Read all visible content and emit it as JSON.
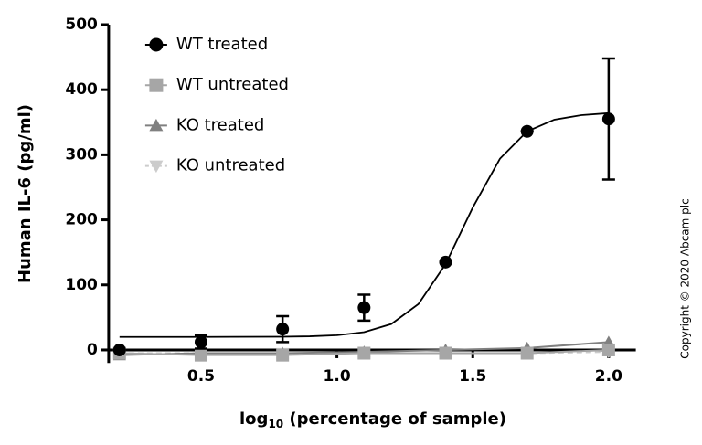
{
  "chart_data": {
    "type": "scatter",
    "y_label": "Human IL-6 (pg/ml)",
    "x_label": {
      "main": "log",
      "sub": "10",
      "rest": " (percentage of sample)"
    },
    "copyright": "Copyright © 2020 Abcam plc",
    "x": [
      0.2,
      0.5,
      0.8,
      1.1,
      1.4,
      1.7,
      2.0
    ],
    "series": [
      {
        "name": "WT treated",
        "color": "#000000",
        "marker": "circle",
        "values": [
          0,
          12,
          32,
          65,
          135,
          336,
          355
        ],
        "errors": [
          0,
          10,
          20,
          20,
          0,
          0,
          93
        ]
      },
      {
        "name": "WT untreated",
        "color": "#a6a6a6",
        "marker": "square",
        "values": [
          -5,
          -8,
          -8,
          -5,
          -5,
          -5,
          0
        ]
      },
      {
        "name": "KO treated",
        "color": "#808080",
        "marker": "triangle",
        "values": [
          -8,
          -5,
          -5,
          -3,
          0,
          3,
          12
        ]
      },
      {
        "name": "KO untreated",
        "color": "#cccccc",
        "marker": "triangle-down",
        "values": [
          -5,
          -5,
          -5,
          -5,
          -5,
          -5,
          -3
        ]
      }
    ],
    "fit_curve": {
      "color": "#000000",
      "x": [
        0.2,
        0.5,
        0.8,
        0.9,
        1.0,
        1.1,
        1.2,
        1.3,
        1.4,
        1.5,
        1.6,
        1.7,
        1.8,
        1.9,
        2.0
      ],
      "values": [
        20,
        20,
        20.3,
        20.9,
        22.6,
        27.3,
        39.8,
        70.6,
        132,
        219,
        294,
        336,
        354,
        361,
        364
      ]
    },
    "xlim": [
      0.16,
      2.1
    ],
    "ylim": [
      -20,
      500
    ],
    "xticks": [
      0.5,
      {
        "value": 1.0,
        "label": "1.0"
      },
      1.5,
      {
        "value": 2.0,
        "label": "2.0"
      }
    ],
    "yticks": [
      0,
      100,
      200,
      300,
      400,
      500
    ],
    "legend": "top-left"
  }
}
